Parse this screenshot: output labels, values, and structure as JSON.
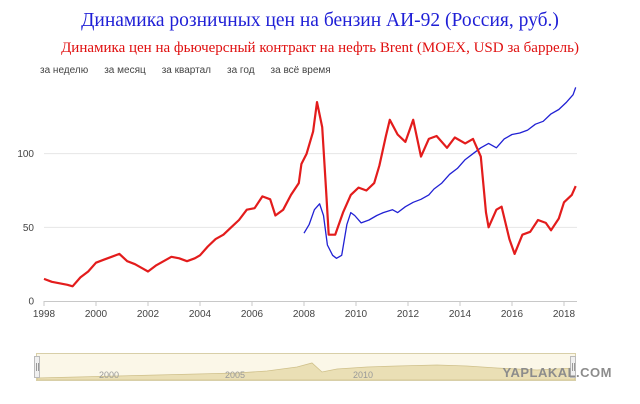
{
  "title": "Динамика розничных цен на бензин АИ-92 (Россия, руб.)",
  "subtitle": "Динамика цен на фьючерсный контракт на нефть Brent (MOEX, USD за баррель)",
  "range_buttons": [
    "за неделю",
    "за месяц",
    "за квартал",
    "за год",
    "за всё время"
  ],
  "navigator_ticks": [
    "2000",
    "2005",
    "2010"
  ],
  "watermark": "YAPLAKAL.COM",
  "colors": {
    "gasoline": "#2121d4",
    "brent": "#e31c1c",
    "accent_title": "#1f1fd6"
  },
  "chart_data": {
    "type": "line",
    "title": "Динамика розничных цен на бензин АИ-92 (Россия, руб.)",
    "xlim": [
      1998,
      2018.5
    ],
    "ylim": [
      0,
      150
    ],
    "x_ticks": [
      "1998",
      "2000",
      "2002",
      "2004",
      "2006",
      "2008",
      "2010",
      "2012",
      "2014",
      "2016",
      "2018"
    ],
    "y_ticks": [
      "0",
      "50",
      "100"
    ],
    "grid": true,
    "series": [
      {
        "id": "gasoline",
        "color": "#2121d4",
        "points": [
          [
            2008.0,
            46
          ],
          [
            2008.2,
            52
          ],
          [
            2008.4,
            62
          ],
          [
            2008.6,
            66
          ],
          [
            2008.75,
            58
          ],
          [
            2008.9,
            38
          ],
          [
            2009.1,
            31
          ],
          [
            2009.25,
            29
          ],
          [
            2009.45,
            31
          ],
          [
            2009.65,
            52
          ],
          [
            2009.8,
            60
          ],
          [
            2009.95,
            58
          ],
          [
            2010.2,
            53
          ],
          [
            2010.5,
            55
          ],
          [
            2010.8,
            58
          ],
          [
            2011.05,
            60
          ],
          [
            2011.4,
            62
          ],
          [
            2011.6,
            60
          ],
          [
            2011.9,
            64
          ],
          [
            2012.2,
            67
          ],
          [
            2012.5,
            69
          ],
          [
            2012.8,
            72
          ],
          [
            2013.0,
            76
          ],
          [
            2013.3,
            80
          ],
          [
            2013.6,
            86
          ],
          [
            2013.9,
            90
          ],
          [
            2014.2,
            96
          ],
          [
            2014.5,
            100
          ],
          [
            2014.8,
            104
          ],
          [
            2015.1,
            107
          ],
          [
            2015.4,
            104
          ],
          [
            2015.7,
            110
          ],
          [
            2016.0,
            113
          ],
          [
            2016.3,
            114
          ],
          [
            2016.6,
            116
          ],
          [
            2016.9,
            120
          ],
          [
            2017.2,
            122
          ],
          [
            2017.5,
            127
          ],
          [
            2017.8,
            130
          ],
          [
            2018.1,
            135
          ],
          [
            2018.35,
            140
          ],
          [
            2018.45,
            145
          ]
        ]
      },
      {
        "id": "brent",
        "color": "#e31c1c",
        "points": [
          [
            1998.0,
            15
          ],
          [
            1998.3,
            13
          ],
          [
            1998.6,
            12
          ],
          [
            1998.9,
            11
          ],
          [
            1999.1,
            10
          ],
          [
            1999.4,
            16
          ],
          [
            1999.7,
            20
          ],
          [
            2000.0,
            26
          ],
          [
            2000.3,
            28
          ],
          [
            2000.6,
            30
          ],
          [
            2000.9,
            32
          ],
          [
            2001.2,
            27
          ],
          [
            2001.5,
            25
          ],
          [
            2001.8,
            22
          ],
          [
            2002.0,
            20
          ],
          [
            2002.3,
            24
          ],
          [
            2002.6,
            27
          ],
          [
            2002.9,
            30
          ],
          [
            2003.2,
            29
          ],
          [
            2003.5,
            27
          ],
          [
            2003.8,
            29
          ],
          [
            2004.0,
            31
          ],
          [
            2004.3,
            37
          ],
          [
            2004.6,
            42
          ],
          [
            2004.9,
            45
          ],
          [
            2005.2,
            50
          ],
          [
            2005.5,
            55
          ],
          [
            2005.8,
            62
          ],
          [
            2006.1,
            63
          ],
          [
            2006.4,
            71
          ],
          [
            2006.7,
            69
          ],
          [
            2006.9,
            58
          ],
          [
            2007.2,
            62
          ],
          [
            2007.5,
            72
          ],
          [
            2007.8,
            80
          ],
          [
            2007.9,
            93
          ],
          [
            2008.1,
            100
          ],
          [
            2008.35,
            115
          ],
          [
            2008.5,
            135
          ],
          [
            2008.7,
            118
          ],
          [
            2008.85,
            75
          ],
          [
            2008.95,
            45
          ],
          [
            2009.2,
            45
          ],
          [
            2009.5,
            60
          ],
          [
            2009.8,
            72
          ],
          [
            2010.1,
            77
          ],
          [
            2010.4,
            75
          ],
          [
            2010.7,
            80
          ],
          [
            2010.9,
            92
          ],
          [
            2011.15,
            112
          ],
          [
            2011.3,
            123
          ],
          [
            2011.6,
            113
          ],
          [
            2011.9,
            108
          ],
          [
            2012.2,
            123
          ],
          [
            2012.5,
            98
          ],
          [
            2012.8,
            110
          ],
          [
            2013.1,
            112
          ],
          [
            2013.5,
            104
          ],
          [
            2013.8,
            111
          ],
          [
            2014.2,
            107
          ],
          [
            2014.5,
            110
          ],
          [
            2014.8,
            98
          ],
          [
            2015.0,
            60
          ],
          [
            2015.1,
            50
          ],
          [
            2015.4,
            62
          ],
          [
            2015.6,
            64
          ],
          [
            2015.9,
            42
          ],
          [
            2016.1,
            32
          ],
          [
            2016.4,
            45
          ],
          [
            2016.7,
            47
          ],
          [
            2017.0,
            55
          ],
          [
            2017.3,
            53
          ],
          [
            2017.5,
            48
          ],
          [
            2017.8,
            56
          ],
          [
            2018.0,
            67
          ],
          [
            2018.3,
            72
          ],
          [
            2018.45,
            78
          ]
        ]
      }
    ]
  }
}
